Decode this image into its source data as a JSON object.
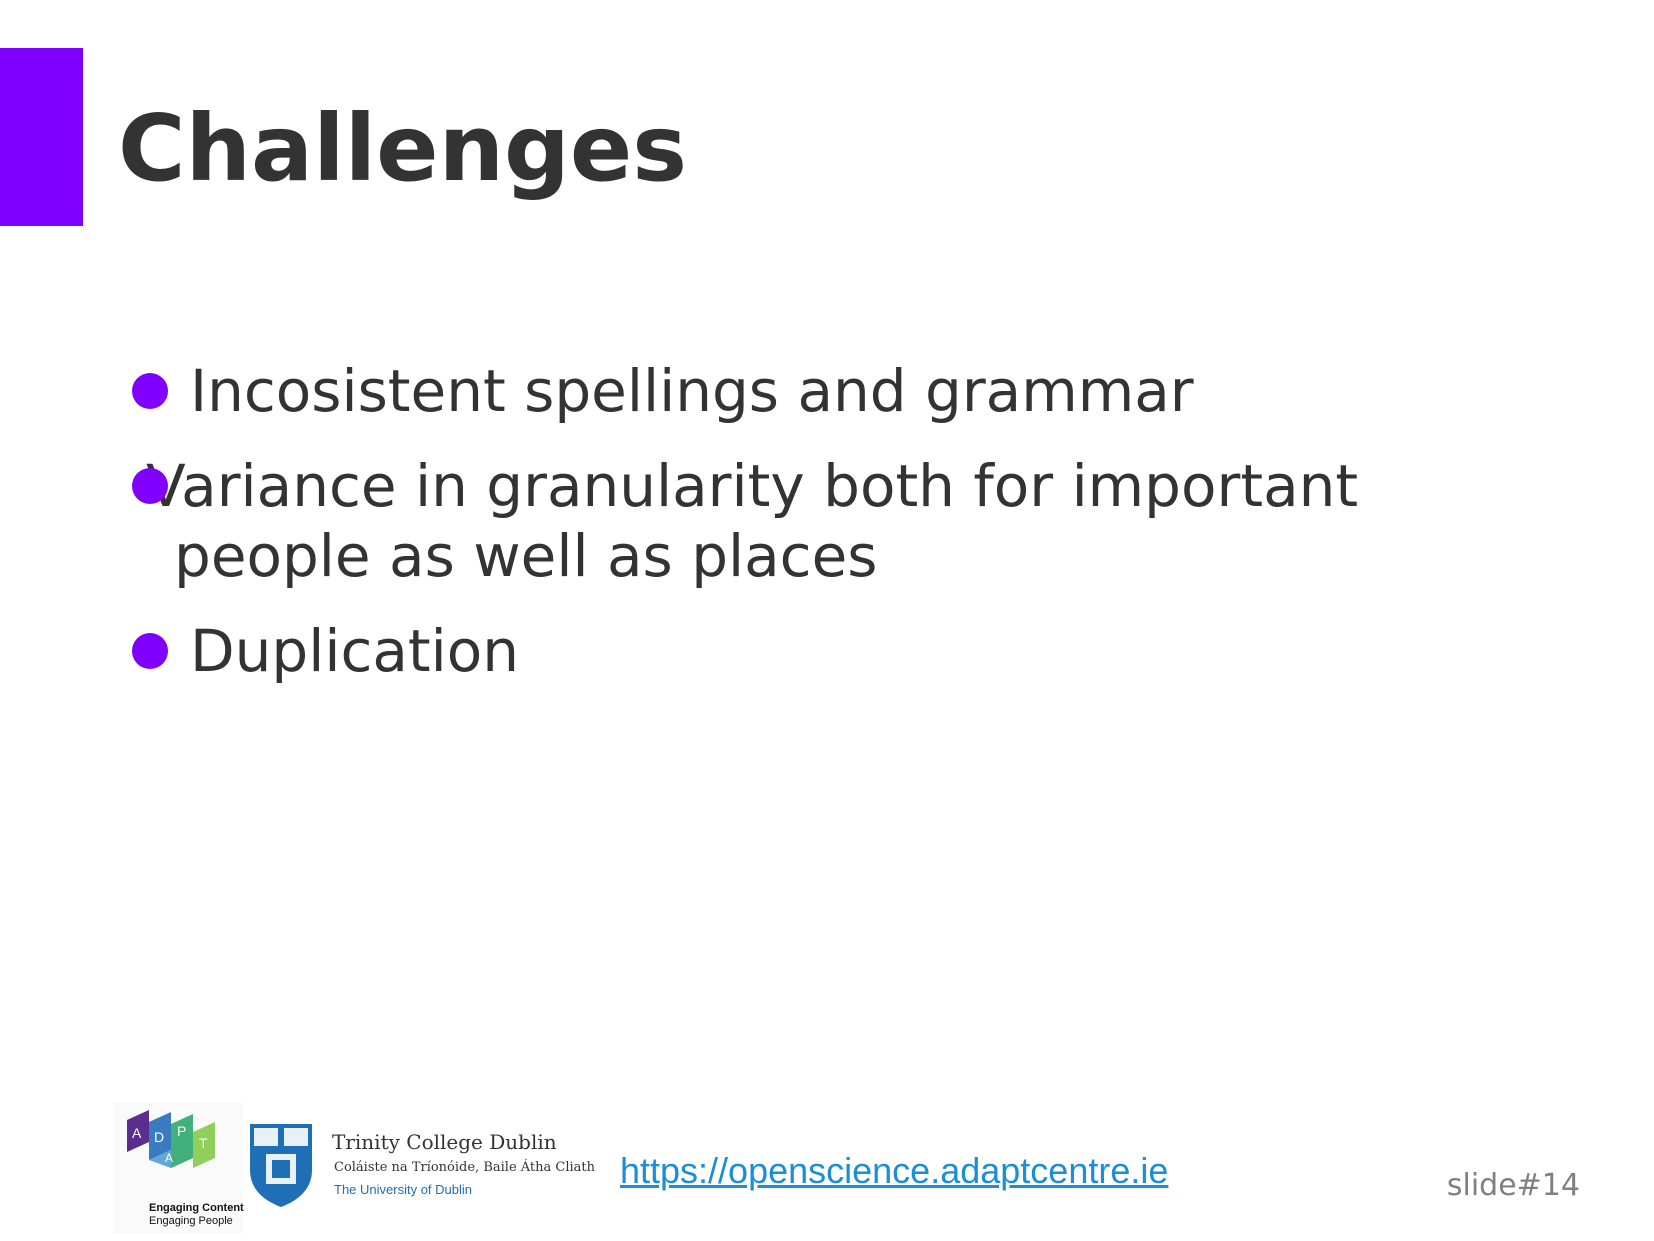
{
  "slide": {
    "title": "Challenges",
    "bullets": [
      "Incosistent spellings and grammar",
      "Variance in granularity both for important people as well as places",
      "Duplication"
    ],
    "accent_color": "#8000ff",
    "text_color": "#333333"
  },
  "footer": {
    "adapt_logo": {
      "letters": [
        "A",
        "D",
        "A",
        "P",
        "T"
      ],
      "caption_line1": "Engaging Content",
      "caption_line2": "Engaging People"
    },
    "tcd_logo": {
      "name": "Trinity College Dublin",
      "irish_name": "Coláiste na Tríonóide, Baile Átha Cliath",
      "subtitle": "The University of Dublin"
    },
    "link": "https://openscience.adaptcentre.ie",
    "link_color": "#1a8fd6",
    "slide_number": "slide#14"
  }
}
